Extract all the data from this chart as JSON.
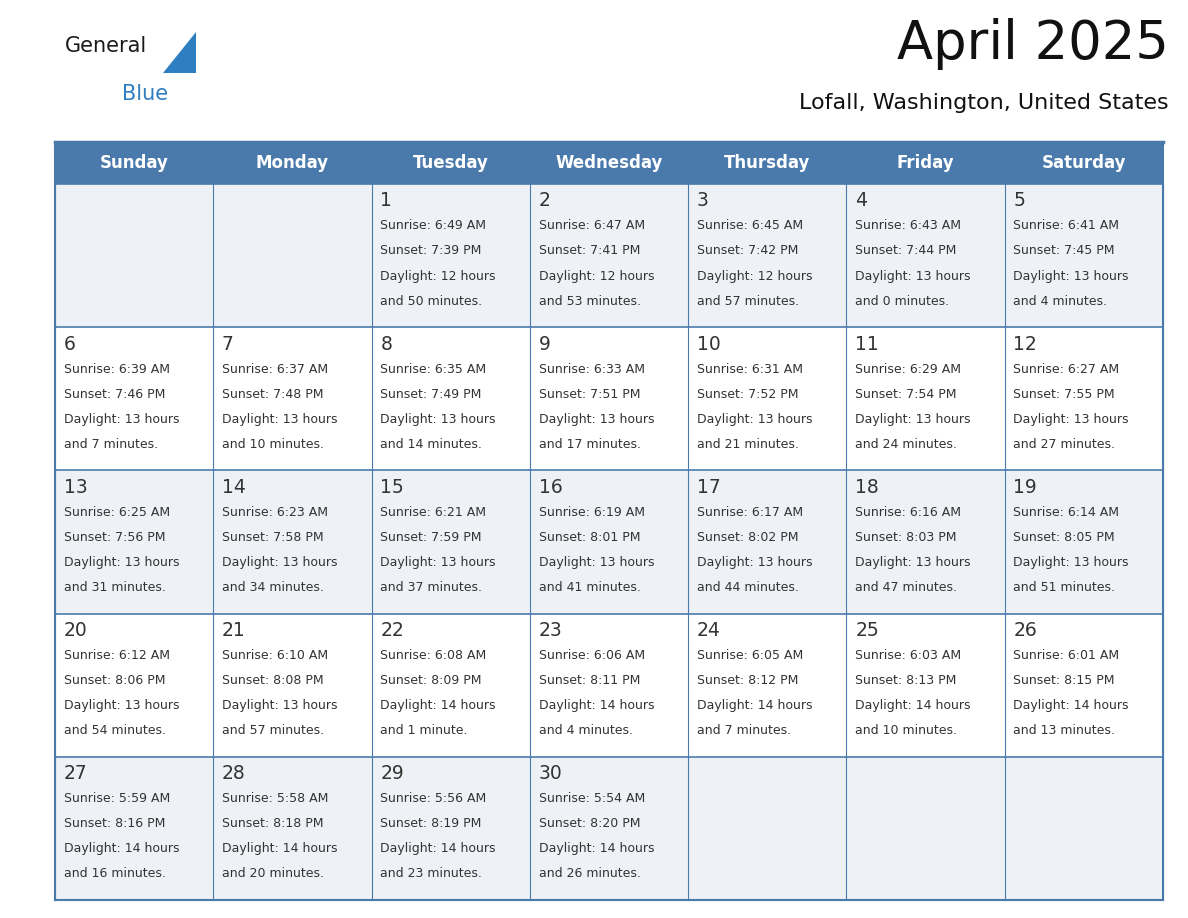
{
  "title": "April 2025",
  "subtitle": "Lofall, Washington, United States",
  "header_bg": "#4a7aac",
  "header_text_color": "#ffffff",
  "row_bg_even": "#eef2f7",
  "row_bg_odd": "#ffffff",
  "border_color": "#4a7aac",
  "text_color": "#333333",
  "day_names": [
    "Sunday",
    "Monday",
    "Tuesday",
    "Wednesday",
    "Thursday",
    "Friday",
    "Saturday"
  ],
  "days": [
    {
      "day": 1,
      "col": 2,
      "row": 0,
      "sunrise": "6:49 AM",
      "sunset": "7:39 PM",
      "daylight": "12 hours",
      "daylight2": "and 50 minutes."
    },
    {
      "day": 2,
      "col": 3,
      "row": 0,
      "sunrise": "6:47 AM",
      "sunset": "7:41 PM",
      "daylight": "12 hours",
      "daylight2": "and 53 minutes."
    },
    {
      "day": 3,
      "col": 4,
      "row": 0,
      "sunrise": "6:45 AM",
      "sunset": "7:42 PM",
      "daylight": "12 hours",
      "daylight2": "and 57 minutes."
    },
    {
      "day": 4,
      "col": 5,
      "row": 0,
      "sunrise": "6:43 AM",
      "sunset": "7:44 PM",
      "daylight": "13 hours",
      "daylight2": "and 0 minutes."
    },
    {
      "day": 5,
      "col": 6,
      "row": 0,
      "sunrise": "6:41 AM",
      "sunset": "7:45 PM",
      "daylight": "13 hours",
      "daylight2": "and 4 minutes."
    },
    {
      "day": 6,
      "col": 0,
      "row": 1,
      "sunrise": "6:39 AM",
      "sunset": "7:46 PM",
      "daylight": "13 hours",
      "daylight2": "and 7 minutes."
    },
    {
      "day": 7,
      "col": 1,
      "row": 1,
      "sunrise": "6:37 AM",
      "sunset": "7:48 PM",
      "daylight": "13 hours",
      "daylight2": "and 10 minutes."
    },
    {
      "day": 8,
      "col": 2,
      "row": 1,
      "sunrise": "6:35 AM",
      "sunset": "7:49 PM",
      "daylight": "13 hours",
      "daylight2": "and 14 minutes."
    },
    {
      "day": 9,
      "col": 3,
      "row": 1,
      "sunrise": "6:33 AM",
      "sunset": "7:51 PM",
      "daylight": "13 hours",
      "daylight2": "and 17 minutes."
    },
    {
      "day": 10,
      "col": 4,
      "row": 1,
      "sunrise": "6:31 AM",
      "sunset": "7:52 PM",
      "daylight": "13 hours",
      "daylight2": "and 21 minutes."
    },
    {
      "day": 11,
      "col": 5,
      "row": 1,
      "sunrise": "6:29 AM",
      "sunset": "7:54 PM",
      "daylight": "13 hours",
      "daylight2": "and 24 minutes."
    },
    {
      "day": 12,
      "col": 6,
      "row": 1,
      "sunrise": "6:27 AM",
      "sunset": "7:55 PM",
      "daylight": "13 hours",
      "daylight2": "and 27 minutes."
    },
    {
      "day": 13,
      "col": 0,
      "row": 2,
      "sunrise": "6:25 AM",
      "sunset": "7:56 PM",
      "daylight": "13 hours",
      "daylight2": "and 31 minutes."
    },
    {
      "day": 14,
      "col": 1,
      "row": 2,
      "sunrise": "6:23 AM",
      "sunset": "7:58 PM",
      "daylight": "13 hours",
      "daylight2": "and 34 minutes."
    },
    {
      "day": 15,
      "col": 2,
      "row": 2,
      "sunrise": "6:21 AM",
      "sunset": "7:59 PM",
      "daylight": "13 hours",
      "daylight2": "and 37 minutes."
    },
    {
      "day": 16,
      "col": 3,
      "row": 2,
      "sunrise": "6:19 AM",
      "sunset": "8:01 PM",
      "daylight": "13 hours",
      "daylight2": "and 41 minutes."
    },
    {
      "day": 17,
      "col": 4,
      "row": 2,
      "sunrise": "6:17 AM",
      "sunset": "8:02 PM",
      "daylight": "13 hours",
      "daylight2": "and 44 minutes."
    },
    {
      "day": 18,
      "col": 5,
      "row": 2,
      "sunrise": "6:16 AM",
      "sunset": "8:03 PM",
      "daylight": "13 hours",
      "daylight2": "and 47 minutes."
    },
    {
      "day": 19,
      "col": 6,
      "row": 2,
      "sunrise": "6:14 AM",
      "sunset": "8:05 PM",
      "daylight": "13 hours",
      "daylight2": "and 51 minutes."
    },
    {
      "day": 20,
      "col": 0,
      "row": 3,
      "sunrise": "6:12 AM",
      "sunset": "8:06 PM",
      "daylight": "13 hours",
      "daylight2": "and 54 minutes."
    },
    {
      "day": 21,
      "col": 1,
      "row": 3,
      "sunrise": "6:10 AM",
      "sunset": "8:08 PM",
      "daylight": "13 hours",
      "daylight2": "and 57 minutes."
    },
    {
      "day": 22,
      "col": 2,
      "row": 3,
      "sunrise": "6:08 AM",
      "sunset": "8:09 PM",
      "daylight": "14 hours",
      "daylight2": "and 1 minute."
    },
    {
      "day": 23,
      "col": 3,
      "row": 3,
      "sunrise": "6:06 AM",
      "sunset": "8:11 PM",
      "daylight": "14 hours",
      "daylight2": "and 4 minutes."
    },
    {
      "day": 24,
      "col": 4,
      "row": 3,
      "sunrise": "6:05 AM",
      "sunset": "8:12 PM",
      "daylight": "14 hours",
      "daylight2": "and 7 minutes."
    },
    {
      "day": 25,
      "col": 5,
      "row": 3,
      "sunrise": "6:03 AM",
      "sunset": "8:13 PM",
      "daylight": "14 hours",
      "daylight2": "and 10 minutes."
    },
    {
      "day": 26,
      "col": 6,
      "row": 3,
      "sunrise": "6:01 AM",
      "sunset": "8:15 PM",
      "daylight": "14 hours",
      "daylight2": "and 13 minutes."
    },
    {
      "day": 27,
      "col": 0,
      "row": 4,
      "sunrise": "5:59 AM",
      "sunset": "8:16 PM",
      "daylight": "14 hours",
      "daylight2": "and 16 minutes."
    },
    {
      "day": 28,
      "col": 1,
      "row": 4,
      "sunrise": "5:58 AM",
      "sunset": "8:18 PM",
      "daylight": "14 hours",
      "daylight2": "and 20 minutes."
    },
    {
      "day": 29,
      "col": 2,
      "row": 4,
      "sunrise": "5:56 AM",
      "sunset": "8:19 PM",
      "daylight": "14 hours",
      "daylight2": "and 23 minutes."
    },
    {
      "day": 30,
      "col": 3,
      "row": 4,
      "sunrise": "5:54 AM",
      "sunset": "8:20 PM",
      "daylight": "14 hours",
      "daylight2": "and 26 minutes."
    }
  ],
  "logo_text_general": "General",
  "logo_text_blue": "Blue",
  "logo_color_general": "#1a1a1a",
  "logo_color_blue": "#2e7ec2",
  "logo_triangle_color": "#2e7ec2",
  "fig_width": 11.88,
  "fig_height": 9.18,
  "dpi": 100
}
